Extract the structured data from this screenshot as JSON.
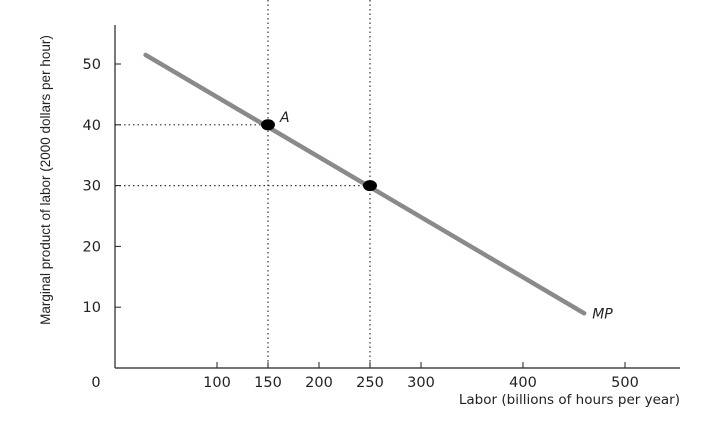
{
  "chart_data": {
    "type": "line",
    "xlabel": "Labor (billions of hours per year)",
    "ylabel": "Marginal product of labor (2000 dollars per hour)",
    "origin_label": "0",
    "x_ticks": [
      100,
      150,
      200,
      250,
      300,
      400,
      500
    ],
    "y_ticks": [
      10,
      20,
      30,
      40,
      50
    ],
    "xlim": [
      0,
      550
    ],
    "ylim": [
      0,
      56
    ],
    "grid": false,
    "series": [
      {
        "name": "MP",
        "x": [
          30,
          460
        ],
        "y": [
          51.5,
          9
        ],
        "color": "#8a8a8a"
      }
    ],
    "points": [
      {
        "label": "A",
        "x": 150,
        "y": 40
      },
      {
        "label": "",
        "x": 250,
        "y": 30
      }
    ],
    "reference_lines": {
      "vertical_x": [
        150,
        250
      ],
      "horizontal_y": [
        40,
        30
      ]
    }
  }
}
